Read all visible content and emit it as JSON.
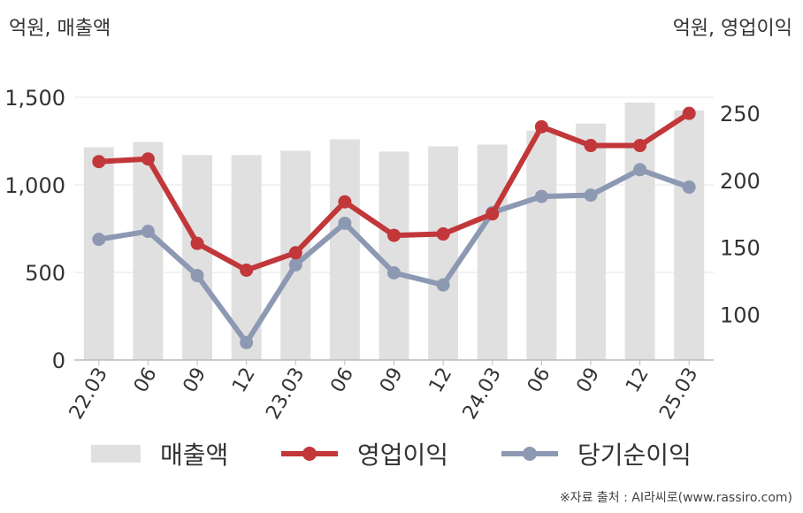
{
  "units": {
    "left": "억원, 매출액",
    "right": "억원, 영업이익"
  },
  "legend": {
    "revenue": "매출액",
    "operating": "영업이익",
    "net": "당기순이익"
  },
  "source": "※자료 출처 : AI라씨로(www.rassiro.com)",
  "colors": {
    "revenue": "#e0e0e0",
    "operating": "#c1373a",
    "net": "#8d99b3"
  },
  "chart_data": {
    "type": "bar+line",
    "categories": [
      "22.03",
      "06",
      "09",
      "12",
      "23.03",
      "06",
      "09",
      "12",
      "24.03",
      "06",
      "09",
      "12",
      "25.03"
    ],
    "left_axis": {
      "label": "억원, 매출액",
      "ylim": [
        0,
        1500
      ],
      "ticks": [
        0,
        500,
        1000,
        1500
      ],
      "tick_labels": [
        "0",
        "500",
        "1,000",
        "1,500"
      ]
    },
    "right_axis": {
      "label": "억원, 영업이익",
      "ylim": [
        66,
        262
      ],
      "ticks": [
        100,
        150,
        200,
        250
      ],
      "tick_labels": [
        "100",
        "150",
        "200",
        "250"
      ]
    },
    "series": [
      {
        "name": "매출액",
        "type": "bar",
        "axis": "left",
        "values": [
          1215,
          1245,
          1170,
          1170,
          1195,
          1260,
          1190,
          1220,
          1230,
          1310,
          1350,
          1470,
          1425
        ]
      },
      {
        "name": "영업이익",
        "type": "line",
        "axis": "right",
        "values": [
          214,
          216,
          153,
          133,
          146,
          184,
          159,
          160,
          175,
          240,
          226,
          226,
          250
        ]
      },
      {
        "name": "당기순이익",
        "type": "line",
        "axis": "right",
        "values": [
          156,
          162,
          129,
          79,
          137,
          168,
          131,
          122,
          176,
          188,
          189,
          208,
          195
        ]
      }
    ],
    "grid": true,
    "legend_position": "bottom"
  }
}
